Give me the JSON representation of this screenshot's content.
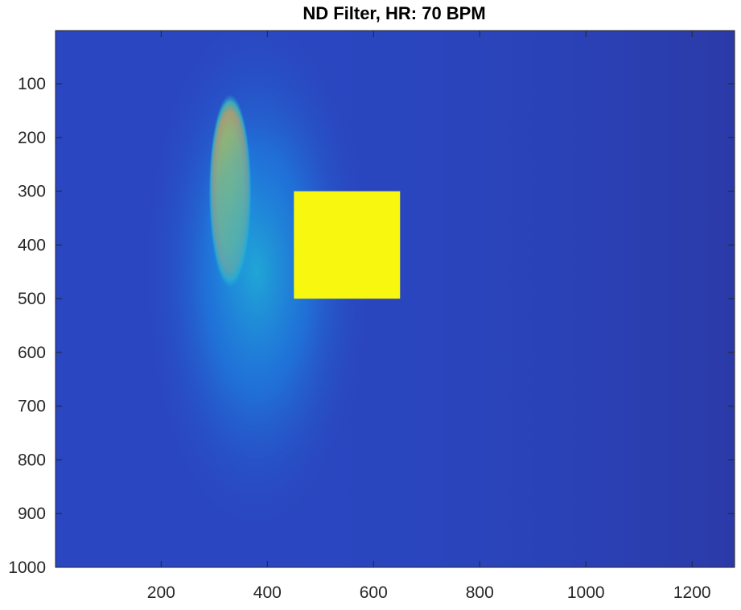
{
  "chart_data": {
    "type": "heatmap",
    "title": "ND Filter, HR: 70 BPM",
    "xlabel": "",
    "ylabel": "",
    "xlim": [
      1,
      1280
    ],
    "ylim": [
      1,
      1000
    ],
    "y_reversed": true,
    "x_ticks": [
      200,
      400,
      600,
      800,
      1000,
      1200
    ],
    "x_tick_labels": [
      "200",
      "400",
      "600",
      "800",
      "1000",
      "1200"
    ],
    "y_ticks": [
      100,
      200,
      300,
      400,
      500,
      600,
      700,
      800,
      900,
      1000
    ],
    "y_tick_labels": [
      "100",
      "200",
      "300",
      "400",
      "500",
      "600",
      "700",
      "800",
      "900",
      "1000"
    ],
    "colormap": "parula",
    "grid": false,
    "background_color": "#2a46c0",
    "features": [
      {
        "name": "bright-elongated-region",
        "center_x": 330,
        "center_y": 300,
        "radius_x": 40,
        "radius_y": 180,
        "level": 1.0
      },
      {
        "name": "diffuse-halo",
        "center_x": 380,
        "center_y": 450,
        "radius_x": 220,
        "radius_y": 500,
        "level": 0.35
      }
    ],
    "rectangle": {
      "x": [
        450,
        650
      ],
      "y": [
        300,
        500
      ],
      "color": "#f7f70f"
    }
  }
}
